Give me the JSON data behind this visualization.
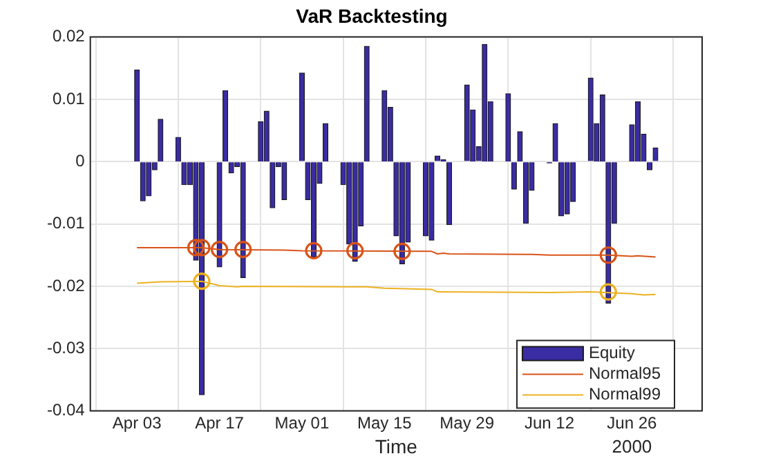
{
  "chart_data": {
    "type": "bar",
    "title": "VaR Backtesting",
    "xlabel": "Time",
    "annotations": [
      "2000"
    ],
    "xlim": [
      "2000-04-02T12:00",
      "2000-06-30T12:00"
    ],
    "xticks": [
      {
        "value": "2000-04-03",
        "label": "Apr 03"
      },
      {
        "value": "2000-04-17",
        "label": "Apr 17"
      },
      {
        "value": "2000-05-01",
        "label": "May 01"
      },
      {
        "value": "2000-05-15",
        "label": "May 15"
      },
      {
        "value": "2000-05-29",
        "label": "May 29"
      },
      {
        "value": "2000-06-12",
        "label": "Jun 12"
      },
      {
        "value": "2000-06-26",
        "label": "Jun 26"
      }
    ],
    "ylim": [
      -0.04,
      0.02
    ],
    "yticks": [
      -0.04,
      -0.03,
      -0.02,
      -0.01,
      0,
      0.01,
      0.02
    ],
    "grid": true,
    "legend": "bottom right",
    "series": [
      {
        "name": "Equity",
        "color": "#3a2ca3",
        "x": [
          "2000-04-03",
          "2000-04-04",
          "2000-04-05",
          "2000-04-06",
          "2000-04-07",
          "2000-04-10",
          "2000-04-11",
          "2000-04-12",
          "2000-04-13",
          "2000-04-14",
          "2000-04-17",
          "2000-04-18",
          "2000-04-19",
          "2000-04-20",
          "2000-04-21",
          "2000-04-24",
          "2000-04-25",
          "2000-04-26",
          "2000-04-27",
          "2000-04-28",
          "2000-05-01",
          "2000-05-02",
          "2000-05-03",
          "2000-05-04",
          "2000-05-05",
          "2000-05-08",
          "2000-05-09",
          "2000-05-10",
          "2000-05-11",
          "2000-05-12",
          "2000-05-15",
          "2000-05-16",
          "2000-05-17",
          "2000-05-18",
          "2000-05-19",
          "2000-05-22",
          "2000-05-23",
          "2000-05-24",
          "2000-05-25",
          "2000-05-26",
          "2000-05-29",
          "2000-05-30",
          "2000-05-31",
          "2000-06-01",
          "2000-06-02",
          "2000-06-05",
          "2000-06-06",
          "2000-06-07",
          "2000-06-08",
          "2000-06-09",
          "2000-06-12",
          "2000-06-13",
          "2000-06-14",
          "2000-06-15",
          "2000-06-16",
          "2000-06-19",
          "2000-06-20",
          "2000-06-21",
          "2000-06-22",
          "2000-06-23",
          "2000-06-26",
          "2000-06-27",
          "2000-06-28",
          "2000-06-29",
          "2000-06-30"
        ],
        "values": [
          0.0147,
          -0.0063,
          -0.0055,
          -0.0013,
          0.0068,
          0.0039,
          -0.0037,
          -0.0037,
          -0.0158,
          -0.0374,
          -0.0169,
          0.0114,
          -0.0018,
          -0.0008,
          -0.0186,
          0.0064,
          0.0081,
          -0.0074,
          -0.0008,
          -0.0061,
          0.0142,
          -0.0061,
          -0.0153,
          -0.0035,
          0.0061,
          -0.0037,
          -0.0132,
          -0.016,
          -0.0103,
          0.0185,
          0.0114,
          0.0087,
          -0.0119,
          -0.0164,
          -0.0129,
          -0.0119,
          -0.0126,
          0.0009,
          0.0003,
          -0.0101,
          0.0123,
          0.0083,
          0.0024,
          0.0188,
          0.0096,
          0.0109,
          -0.0044,
          0.0048,
          -0.0099,
          -0.0046,
          -0.0002,
          0.0061,
          -0.0087,
          -0.0084,
          -0.0064,
          0.0134,
          0.0061,
          0.0107,
          -0.0227,
          -0.0099,
          0.0059,
          0.0096,
          0.0044,
          -0.0013,
          0.0022
        ]
      },
      {
        "name": "Normal95",
        "type": "line",
        "color": "#d95319",
        "marker": "none",
        "x": [
          "2000-04-03",
          "2000-04-14",
          "2000-04-17",
          "2000-04-28",
          "2000-05-01",
          "2000-05-23",
          "2000-05-24",
          "2000-05-25",
          "2000-05-26",
          "2000-06-09",
          "2000-06-12",
          "2000-06-22",
          "2000-06-26",
          "2000-06-27",
          "2000-06-30"
        ],
        "values": [
          -0.0138,
          -0.0138,
          -0.0141,
          -0.0142,
          -0.0143,
          -0.0144,
          -0.0148,
          -0.0147,
          -0.0148,
          -0.0149,
          -0.015,
          -0.015,
          -0.0152,
          -0.0151,
          -0.0153
        ]
      },
      {
        "name": "Normal99",
        "type": "line",
        "color": "#edb120",
        "marker": "none",
        "x": [
          "2000-04-03",
          "2000-04-07",
          "2000-04-14",
          "2000-04-17",
          "2000-04-20",
          "2000-04-21",
          "2000-05-12",
          "2000-05-15",
          "2000-05-23",
          "2000-05-24",
          "2000-06-12",
          "2000-06-19",
          "2000-06-26",
          "2000-06-28",
          "2000-06-30"
        ],
        "values": [
          -0.0195,
          -0.0193,
          -0.0192,
          -0.0199,
          -0.0201,
          -0.02,
          -0.0201,
          -0.0203,
          -0.0205,
          -0.0209,
          -0.021,
          -0.0209,
          -0.0212,
          -0.0214,
          -0.0213
        ]
      },
      {
        "type": "scatter",
        "color": "#d95319",
        "marker": "circle",
        "x": [
          "2000-04-13",
          "2000-04-14",
          "2000-04-17",
          "2000-04-21",
          "2000-05-03",
          "2000-05-10",
          "2000-05-18",
          "2000-06-22"
        ],
        "values": [
          -0.0138,
          -0.0138,
          -0.0141,
          -0.0141,
          -0.0143,
          -0.0143,
          -0.0144,
          -0.015
        ]
      },
      {
        "type": "scatter",
        "color": "#edb120",
        "marker": "circle",
        "x": [
          "2000-04-14",
          "2000-06-22"
        ],
        "values": [
          -0.0192,
          -0.0209
        ]
      }
    ]
  }
}
